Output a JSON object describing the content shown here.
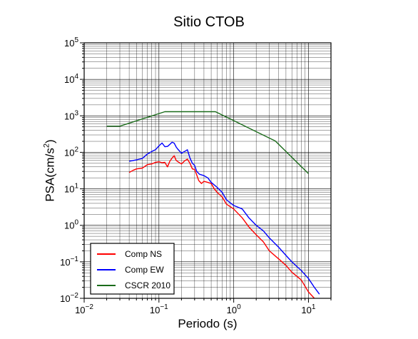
{
  "chart_data": {
    "type": "line",
    "title": "Sitio CTOB",
    "xlabel": "Periodo (s)",
    "ylabel": "PSA(cm/s",
    "ylabel_exponent": "2",
    "ylabel_close": ")",
    "xscale": "log",
    "yscale": "log",
    "xlim": [
      0.01,
      20
    ],
    "ylim": [
      0.01,
      100000
    ],
    "grid": true,
    "legend_position": "bottom-left",
    "x_tick_labels": [
      {
        "base": "10",
        "exp": "−2",
        "value": 0.01
      },
      {
        "base": "10",
        "exp": "−1",
        "value": 0.1
      },
      {
        "base": "10",
        "exp": "0",
        "value": 1
      },
      {
        "base": "10",
        "exp": "1",
        "value": 10
      }
    ],
    "y_tick_labels": [
      {
        "base": "10",
        "exp": "−2",
        "value": 0.01
      },
      {
        "base": "10",
        "exp": "−1",
        "value": 0.1
      },
      {
        "base": "10",
        "exp": "0",
        "value": 1
      },
      {
        "base": "10",
        "exp": "1",
        "value": 10
      },
      {
        "base": "10",
        "exp": "2",
        "value": 100
      },
      {
        "base": "10",
        "exp": "3",
        "value": 1000
      },
      {
        "base": "10",
        "exp": "4",
        "value": 10000
      },
      {
        "base": "10",
        "exp": "5",
        "value": 100000
      }
    ],
    "series": [
      {
        "name": "Comp NS",
        "color": "#ff0000",
        "x": [
          0.04,
          0.045,
          0.05,
          0.06,
          0.07,
          0.08,
          0.09,
          0.1,
          0.11,
          0.12,
          0.13,
          0.14,
          0.15,
          0.16,
          0.17,
          0.18,
          0.2,
          0.22,
          0.24,
          0.26,
          0.28,
          0.3,
          0.32,
          0.34,
          0.37,
          0.4,
          0.45,
          0.5,
          0.55,
          0.6,
          0.7,
          0.8,
          1.0,
          1.3,
          1.6,
          2,
          2.5,
          3,
          4,
          5,
          6,
          8,
          10,
          12
        ],
        "y": [
          28,
          32,
          35,
          37,
          46,
          48,
          53,
          55,
          52,
          53,
          40,
          57,
          70,
          81,
          60,
          55,
          48,
          58,
          65,
          50,
          35,
          34,
          24,
          17,
          14,
          16,
          15,
          14,
          10,
          8,
          6,
          3.8,
          2.8,
          1.6,
          0.9,
          0.55,
          0.35,
          0.2,
          0.12,
          0.08,
          0.052,
          0.032,
          0.015,
          0.01
        ]
      },
      {
        "name": "Comp EW",
        "color": "#0000ff",
        "x": [
          0.04,
          0.05,
          0.06,
          0.07,
          0.08,
          0.09,
          0.1,
          0.11,
          0.12,
          0.13,
          0.14,
          0.15,
          0.16,
          0.17,
          0.18,
          0.2,
          0.22,
          0.24,
          0.26,
          0.28,
          0.3,
          0.32,
          0.35,
          0.4,
          0.45,
          0.5,
          0.6,
          0.7,
          0.8,
          1.0,
          1.3,
          1.6,
          2,
          2.5,
          3,
          4,
          5,
          6,
          8,
          10,
          12,
          14
        ],
        "y": [
          57,
          62,
          68,
          90,
          105,
          118,
          150,
          180,
          143,
          145,
          165,
          190,
          178,
          140,
          120,
          95,
          105,
          118,
          70,
          50,
          44,
          30,
          25,
          23,
          20,
          15,
          11,
          8,
          5,
          3.5,
          2.8,
          1.6,
          1,
          0.7,
          0.45,
          0.25,
          0.15,
          0.1,
          0.058,
          0.035,
          0.02,
          0.013
        ]
      },
      {
        "name": "CSCR 2010",
        "color": "#1a6b1a",
        "x": [
          0.02,
          0.03,
          0.12,
          0.57,
          3.6,
          10
        ],
        "y": [
          520,
          520,
          1300,
          1300,
          205,
          26
        ]
      }
    ]
  }
}
